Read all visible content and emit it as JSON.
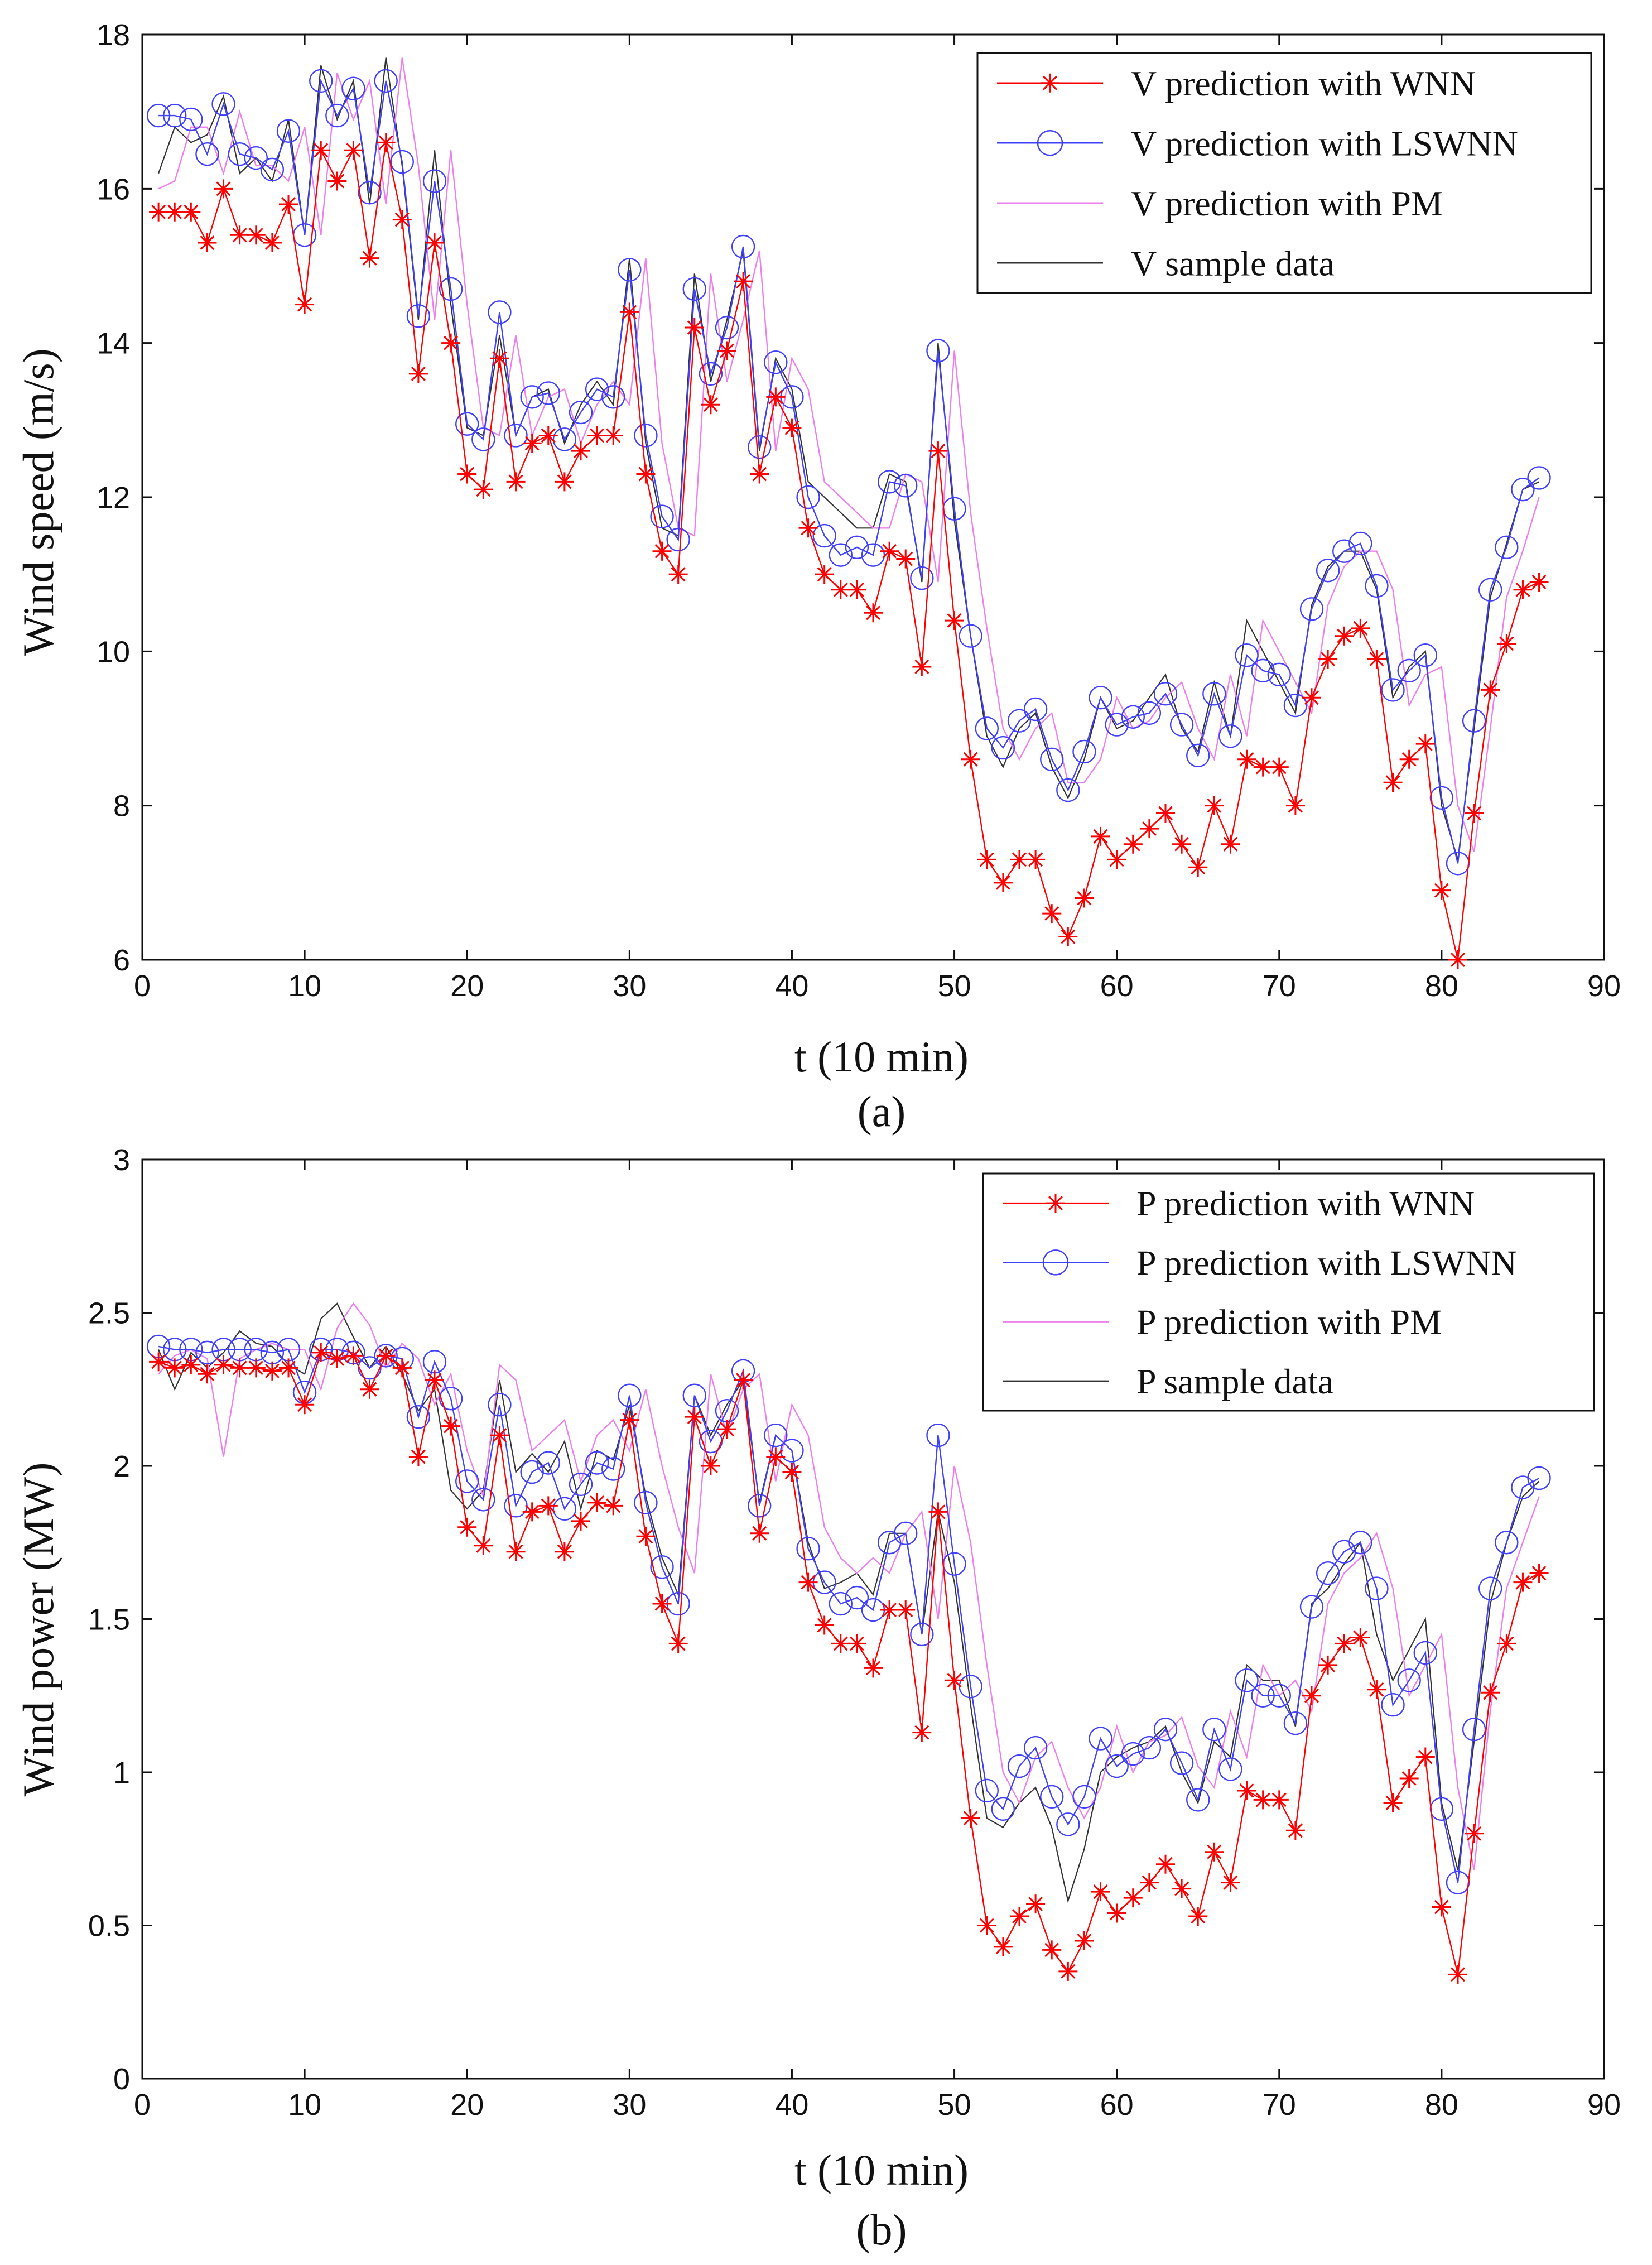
{
  "figure_labels": [
    "(a)",
    "(b)"
  ],
  "chart_data": [
    {
      "type": "line",
      "panel": "(a)",
      "title": "",
      "xlabel": "t (10 min)",
      "ylabel": "Wind speed (m/s)",
      "xlim": [
        0,
        90
      ],
      "ylim": [
        6,
        18
      ],
      "xticks": [
        0,
        10,
        20,
        30,
        40,
        50,
        60,
        70,
        80,
        90
      ],
      "yticks": [
        6,
        8,
        10,
        12,
        14,
        16,
        18
      ],
      "legend_position": "top-right",
      "x": [
        1,
        2,
        3,
        4,
        5,
        6,
        7,
        8,
        9,
        10,
        11,
        12,
        13,
        14,
        15,
        16,
        17,
        18,
        19,
        20,
        21,
        22,
        23,
        24,
        25,
        26,
        27,
        28,
        29,
        30,
        31,
        32,
        33,
        34,
        35,
        36,
        37,
        38,
        39,
        40,
        41,
        42,
        43,
        44,
        45,
        46,
        47,
        48,
        49,
        50,
        51,
        52,
        53,
        54,
        55,
        56,
        57,
        58,
        59,
        60,
        61,
        62,
        63,
        64,
        65,
        66,
        67,
        68,
        69,
        70,
        71,
        72,
        73,
        74,
        75,
        76,
        77,
        78,
        79,
        80,
        81,
        82,
        83,
        84,
        85,
        86
      ],
      "series": [
        {
          "name": "V prediction with WNN",
          "color": "#ff0000",
          "marker": "star",
          "values": [
            15.7,
            15.7,
            15.7,
            15.3,
            16.0,
            15.4,
            15.4,
            15.3,
            15.8,
            14.5,
            16.5,
            16.1,
            16.5,
            15.1,
            16.6,
            15.6,
            13.6,
            15.3,
            14.0,
            12.3,
            12.1,
            13.8,
            12.2,
            12.7,
            12.8,
            12.2,
            12.6,
            12.8,
            12.8,
            14.4,
            12.3,
            11.3,
            11.0,
            14.2,
            13.2,
            13.9,
            14.8,
            12.3,
            13.3,
            12.9,
            11.6,
            11.0,
            10.8,
            10.8,
            10.5,
            11.3,
            11.2,
            9.8,
            12.6,
            10.4,
            8.6,
            7.3,
            7.0,
            7.3,
            7.3,
            6.6,
            6.3,
            6.8,
            7.6,
            7.3,
            7.5,
            7.7,
            7.9,
            7.5,
            7.2,
            8.0,
            7.5,
            8.6,
            8.5,
            8.5,
            8.0,
            9.4,
            9.9,
            10.2,
            10.3,
            9.9,
            8.3,
            8.6,
            8.8,
            6.9,
            6.0,
            7.9,
            9.5,
            10.1,
            10.8,
            10.9
          ]
        },
        {
          "name": "V prediction with LSWNN",
          "color": "#4040ff",
          "marker": "circle",
          "values": [
            16.95,
            16.95,
            16.9,
            16.45,
            17.1,
            16.45,
            16.4,
            16.25,
            16.75,
            15.4,
            17.4,
            16.95,
            17.3,
            15.95,
            17.4,
            16.35,
            14.35,
            16.1,
            14.7,
            12.95,
            12.75,
            14.4,
            12.8,
            13.3,
            13.35,
            12.75,
            13.1,
            13.4,
            13.3,
            14.95,
            12.8,
            11.75,
            11.45,
            14.7,
            13.6,
            14.2,
            15.25,
            12.65,
            13.75,
            13.3,
            12.0,
            11.5,
            11.25,
            11.35,
            11.25,
            12.2,
            12.15,
            10.95,
            13.9,
            11.85,
            10.2,
            9.0,
            8.75,
            9.1,
            9.25,
            8.6,
            8.2,
            8.7,
            9.4,
            9.05,
            9.15,
            9.2,
            9.45,
            9.05,
            8.65,
            9.45,
            8.9,
            9.95,
            9.75,
            9.7,
            9.3,
            10.55,
            11.05,
            11.3,
            11.4,
            10.85,
            9.5,
            9.75,
            9.95,
            8.1,
            7.25,
            9.1,
            10.8,
            11.35,
            12.1,
            12.25
          ]
        },
        {
          "name": "V prediction with PM",
          "color": "#ee80ee",
          "marker": "none",
          "values": [
            16.0,
            16.1,
            16.8,
            16.8,
            16.2,
            17.0,
            16.3,
            16.3,
            16.1,
            16.8,
            15.4,
            17.5,
            16.9,
            17.4,
            15.8,
            17.7,
            16.3,
            14.3,
            16.5,
            14.5,
            12.9,
            12.8,
            14.1,
            12.8,
            13.3,
            13.4,
            12.7,
            13.2,
            13.5,
            13.2,
            15.1,
            12.7,
            11.6,
            11.5,
            14.9,
            13.5,
            14.3,
            15.2,
            12.6,
            13.8,
            13.4,
            12.2,
            12.0,
            11.8,
            11.6,
            11.6,
            12.3,
            12.2,
            10.9,
            13.9,
            11.8,
            10.3,
            9.0,
            8.6,
            9.0,
            9.2,
            8.3,
            8.3,
            8.6,
            9.4,
            9.0,
            9.1,
            9.4,
            9.6,
            9.0,
            8.6,
            9.7,
            8.9,
            10.4,
            10.0,
            9.6,
            9.2,
            10.6,
            11.1,
            11.3,
            11.3,
            10.8,
            9.3,
            9.7,
            9.8,
            8.0,
            7.4,
            9.0,
            10.7,
            11.3,
            12.0
          ]
        },
        {
          "name": "V sample data",
          "color": "#333333",
          "marker": "none",
          "values": [
            16.2,
            16.8,
            16.6,
            16.7,
            17.2,
            16.2,
            16.4,
            16.1,
            16.9,
            15.4,
            17.6,
            16.9,
            17.4,
            15.8,
            17.7,
            16.3,
            14.3,
            16.5,
            14.5,
            12.9,
            12.8,
            14.1,
            12.8,
            13.3,
            13.4,
            12.7,
            13.2,
            13.5,
            13.2,
            15.1,
            12.7,
            11.6,
            11.5,
            14.9,
            13.5,
            14.3,
            15.2,
            12.6,
            13.8,
            13.4,
            12.2,
            12.0,
            11.8,
            11.6,
            11.6,
            12.3,
            12.2,
            10.9,
            14.0,
            11.7,
            10.2,
            8.9,
            8.5,
            9.0,
            9.2,
            8.5,
            8.1,
            8.6,
            9.4,
            9.0,
            9.1,
            9.4,
            9.7,
            9.0,
            8.7,
            9.6,
            8.9,
            10.4,
            10.0,
            9.6,
            9.2,
            10.6,
            11.1,
            11.3,
            11.3,
            10.8,
            9.4,
            9.8,
            10.0,
            8.0,
            7.3,
            9.0,
            10.7,
            11.4,
            12.1,
            12.2
          ]
        }
      ]
    },
    {
      "type": "line",
      "panel": "(b)",
      "title": "",
      "xlabel": "t (10 min)",
      "ylabel": "Wind power (MW)",
      "xlim": [
        0,
        90
      ],
      "ylim": [
        0,
        3
      ],
      "xticks": [
        0,
        10,
        20,
        30,
        40,
        50,
        60,
        70,
        80,
        90
      ],
      "yticks": [
        "0",
        "0.5",
        "1",
        "1.5",
        "2",
        "2.5",
        "3"
      ],
      "legend_position": "top-right",
      "x": [
        1,
        2,
        3,
        4,
        5,
        6,
        7,
        8,
        9,
        10,
        11,
        12,
        13,
        14,
        15,
        16,
        17,
        18,
        19,
        20,
        21,
        22,
        23,
        24,
        25,
        26,
        27,
        28,
        29,
        30,
        31,
        32,
        33,
        34,
        35,
        36,
        37,
        38,
        39,
        40,
        41,
        42,
        43,
        44,
        45,
        46,
        47,
        48,
        49,
        50,
        51,
        52,
        53,
        54,
        55,
        56,
        57,
        58,
        59,
        60,
        61,
        62,
        63,
        64,
        65,
        66,
        67,
        68,
        69,
        70,
        71,
        72,
        73,
        74,
        75,
        76,
        77,
        78,
        79,
        80,
        81,
        82,
        83,
        84,
        85,
        86
      ],
      "series": [
        {
          "name": "P prediction with WNN",
          "color": "#ff0000",
          "marker": "star",
          "values": [
            2.34,
            2.32,
            2.33,
            2.3,
            2.33,
            2.32,
            2.32,
            2.31,
            2.32,
            2.2,
            2.37,
            2.35,
            2.36,
            2.25,
            2.36,
            2.32,
            2.03,
            2.28,
            2.13,
            1.8,
            1.74,
            2.1,
            1.72,
            1.85,
            1.87,
            1.72,
            1.82,
            1.88,
            1.87,
            2.15,
            1.77,
            1.55,
            1.42,
            2.16,
            2.0,
            2.12,
            2.28,
            1.78,
            2.03,
            1.98,
            1.62,
            1.48,
            1.42,
            1.42,
            1.34,
            1.53,
            1.53,
            1.13,
            1.85,
            1.3,
            0.85,
            0.5,
            0.43,
            0.53,
            0.57,
            0.42,
            0.35,
            0.45,
            0.61,
            0.54,
            0.59,
            0.64,
            0.7,
            0.62,
            0.53,
            0.74,
            0.64,
            0.94,
            0.91,
            0.91,
            0.81,
            1.25,
            1.35,
            1.42,
            1.44,
            1.27,
            0.9,
            0.98,
            1.05,
            0.56,
            0.34,
            0.8,
            1.26,
            1.42,
            1.62,
            1.65
          ]
        },
        {
          "name": "P prediction with LSWNN",
          "color": "#4040ff",
          "marker": "circle",
          "values": [
            2.39,
            2.38,
            2.38,
            2.37,
            2.38,
            2.38,
            2.38,
            2.37,
            2.38,
            2.24,
            2.38,
            2.38,
            2.37,
            2.32,
            2.36,
            2.35,
            2.16,
            2.34,
            2.22,
            1.95,
            1.89,
            2.2,
            1.87,
            1.98,
            2.01,
            1.86,
            1.94,
            2.01,
            1.99,
            2.23,
            1.88,
            1.67,
            1.55,
            2.23,
            2.08,
            2.18,
            2.31,
            1.87,
            2.1,
            2.05,
            1.73,
            1.62,
            1.55,
            1.57,
            1.53,
            1.75,
            1.78,
            1.45,
            2.1,
            1.68,
            1.28,
            0.94,
            0.88,
            1.02,
            1.08,
            0.92,
            0.83,
            0.92,
            1.11,
            1.02,
            1.06,
            1.08,
            1.14,
            1.03,
            0.91,
            1.14,
            1.01,
            1.3,
            1.25,
            1.25,
            1.16,
            1.54,
            1.65,
            1.72,
            1.75,
            1.6,
            1.22,
            1.3,
            1.39,
            0.88,
            0.64,
            1.14,
            1.6,
            1.75,
            1.93,
            1.96
          ]
        },
        {
          "name": "P prediction with PM",
          "color": "#ee80ee",
          "marker": "none",
          "values": [
            2.3,
            2.36,
            2.38,
            2.35,
            2.03,
            2.35,
            2.38,
            2.4,
            2.38,
            2.38,
            2.25,
            2.45,
            2.53,
            2.46,
            2.32,
            2.4,
            2.35,
            2.2,
            2.3,
            2.05,
            1.9,
            2.33,
            2.28,
            2.05,
            2.1,
            2.15,
            1.95,
            2.1,
            2.15,
            2.05,
            2.25,
            2.0,
            1.8,
            1.65,
            2.3,
            2.1,
            2.25,
            2.3,
            1.95,
            2.2,
            2.1,
            1.8,
            1.7,
            1.65,
            1.7,
            1.65,
            1.78,
            1.85,
            1.5,
            2.0,
            1.75,
            1.35,
            1.0,
            0.9,
            1.05,
            1.1,
            0.95,
            0.85,
            0.95,
            1.15,
            1.0,
            1.1,
            1.12,
            1.18,
            1.02,
            0.95,
            1.2,
            1.05,
            1.35,
            1.25,
            1.3,
            1.2,
            1.55,
            1.65,
            1.7,
            1.78,
            1.6,
            1.25,
            1.35,
            1.45,
            0.95,
            0.68,
            1.2,
            1.6,
            1.75,
            1.9
          ]
        },
        {
          "name": "P sample data",
          "color": "#333333",
          "marker": "none",
          "values": [
            2.38,
            2.25,
            2.37,
            2.32,
            2.37,
            2.44,
            2.4,
            2.39,
            2.33,
            2.3,
            2.48,
            2.53,
            2.42,
            2.32,
            2.39,
            2.3,
            2.18,
            2.25,
            1.92,
            1.86,
            1.92,
            2.28,
            1.98,
            2.04,
            1.98,
            2.08,
            1.86,
            2.05,
            2.02,
            2.2,
            1.9,
            1.7,
            1.58,
            2.23,
            2.1,
            2.2,
            2.28,
            1.88,
            2.1,
            2.05,
            1.75,
            1.6,
            1.62,
            1.65,
            1.58,
            1.78,
            1.78,
            1.45,
            1.85,
            1.62,
            1.22,
            0.85,
            0.82,
            0.9,
            0.95,
            0.82,
            0.58,
            0.75,
            1.0,
            1.05,
            1.08,
            1.1,
            1.15,
            1.0,
            0.9,
            1.1,
            1.05,
            1.35,
            1.3,
            1.3,
            1.15,
            1.55,
            1.6,
            1.68,
            1.75,
            1.45,
            1.3,
            1.4,
            1.5,
            0.9,
            0.68,
            1.1,
            1.55,
            1.75,
            1.9,
            1.95
          ]
        }
      ]
    }
  ]
}
